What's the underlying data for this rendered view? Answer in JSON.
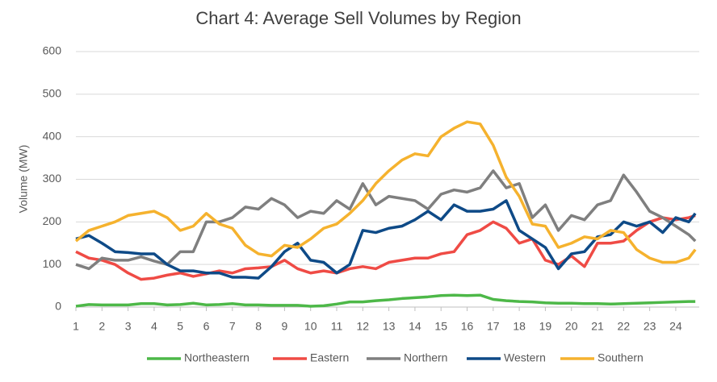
{
  "chart_data": {
    "type": "line",
    "title": "Chart 4: Average Sell Volumes by Region",
    "ylabel": "Volume (MW)",
    "x": [
      1,
      1.5,
      2,
      2.5,
      3,
      3.5,
      4,
      4.5,
      5,
      5.5,
      6,
      6.5,
      7,
      7.5,
      8,
      8.5,
      9,
      9.5,
      10,
      10.5,
      11,
      11.5,
      12,
      12.5,
      13,
      13.5,
      14,
      14.5,
      15,
      15.5,
      16,
      16.5,
      17,
      17.5,
      18,
      18.5,
      19,
      19.5,
      20,
      20.5,
      21,
      21.5,
      22,
      22.5,
      23,
      23.5,
      24,
      24.5,
      24.75
    ],
    "xlim": [
      1,
      24.9
    ],
    "xticks": [
      1,
      2,
      3,
      4,
      5,
      6,
      7,
      8,
      9,
      10,
      11,
      12,
      13,
      14,
      15,
      16,
      17,
      18,
      19,
      20,
      21,
      22,
      23,
      24
    ],
    "ylim": [
      0,
      600
    ],
    "yticks": [
      0,
      100,
      200,
      300,
      400,
      500,
      600
    ],
    "grid": true,
    "legend": "bottom",
    "series": [
      {
        "name": "Northeastern",
        "color": "#4db848",
        "values": [
          2,
          6,
          5,
          5,
          5,
          8,
          8,
          5,
          6,
          9,
          5,
          6,
          8,
          5,
          5,
          4,
          4,
          4,
          2,
          3,
          7,
          12,
          12,
          15,
          17,
          20,
          22,
          24,
          27,
          28,
          27,
          28,
          18,
          15,
          13,
          12,
          10,
          9,
          9,
          8,
          8,
          7,
          8,
          9,
          10,
          11,
          12,
          13,
          13
        ]
      },
      {
        "name": "Eastern",
        "color": "#ef4b45",
        "values": [
          130,
          115,
          110,
          100,
          80,
          65,
          68,
          75,
          80,
          72,
          78,
          85,
          80,
          90,
          92,
          95,
          110,
          90,
          80,
          85,
          80,
          90,
          95,
          90,
          105,
          110,
          115,
          115,
          125,
          130,
          170,
          180,
          200,
          185,
          150,
          160,
          110,
          100,
          120,
          95,
          150,
          150,
          155,
          180,
          200,
          210,
          205,
          210,
          215
        ]
      },
      {
        "name": "Northern",
        "color": "#7f7f7f",
        "values": [
          100,
          90,
          115,
          110,
          110,
          118,
          108,
          100,
          130,
          130,
          200,
          200,
          210,
          235,
          230,
          255,
          240,
          210,
          225,
          220,
          250,
          230,
          290,
          240,
          260,
          255,
          250,
          230,
          265,
          275,
          270,
          280,
          320,
          280,
          290,
          210,
          240,
          180,
          215,
          205,
          240,
          250,
          310,
          270,
          225,
          210,
          190,
          170,
          155
        ]
      },
      {
        "name": "Western",
        "color": "#0e4a87",
        "values": [
          160,
          168,
          150,
          130,
          128,
          125,
          125,
          100,
          85,
          85,
          80,
          80,
          70,
          70,
          68,
          95,
          130,
          150,
          110,
          105,
          80,
          100,
          180,
          175,
          185,
          190,
          205,
          225,
          205,
          240,
          225,
          225,
          230,
          250,
          180,
          160,
          140,
          90,
          125,
          130,
          165,
          170,
          200,
          190,
          200,
          175,
          210,
          200,
          220
        ]
      },
      {
        "name": "Southern",
        "color": "#f5b22e",
        "values": [
          155,
          180,
          190,
          200,
          215,
          220,
          225,
          210,
          180,
          190,
          220,
          195,
          185,
          145,
          125,
          120,
          145,
          140,
          160,
          185,
          195,
          220,
          250,
          290,
          320,
          345,
          360,
          355,
          400,
          420,
          435,
          430,
          380,
          305,
          260,
          195,
          190,
          140,
          150,
          165,
          160,
          180,
          175,
          135,
          115,
          105,
          105,
          115,
          135
        ]
      }
    ]
  }
}
